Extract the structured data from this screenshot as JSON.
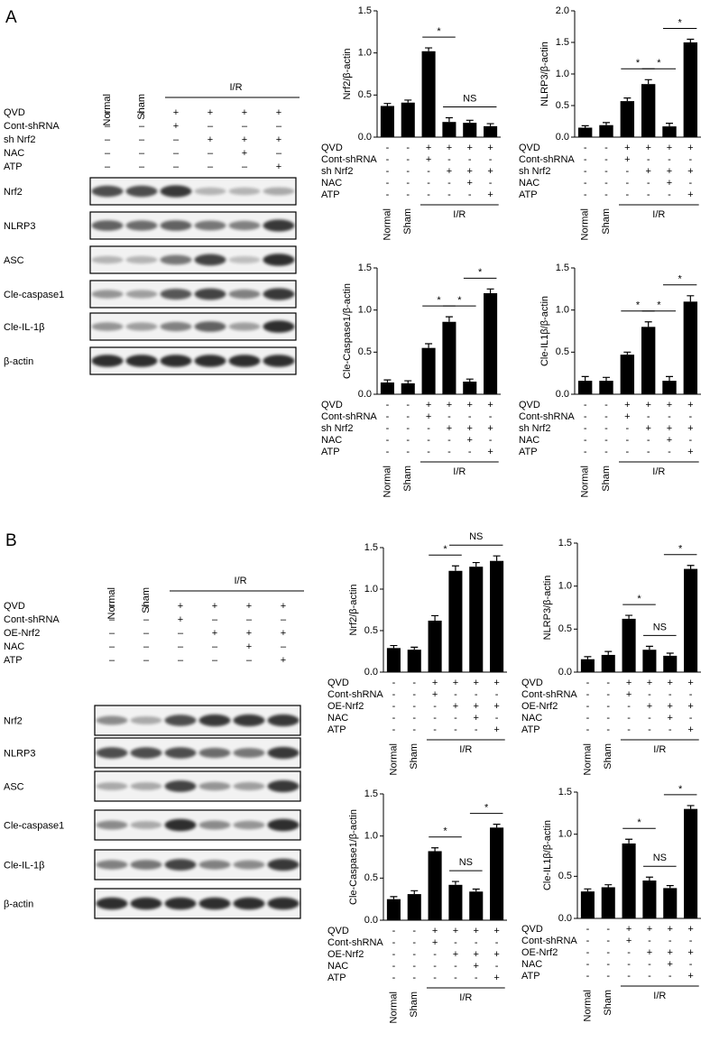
{
  "panels": [
    {
      "label": "A",
      "blot": {
        "lanes": [
          "Normal",
          "Sham"
        ],
        "group": "I/R",
        "conditions": [
          {
            "name": "QVD",
            "marks": [
              "–",
              "–",
              "+",
              "+",
              "+",
              "+"
            ]
          },
          {
            "name": "Cont-shRNA",
            "marks": [
              "–",
              "–",
              "+",
              "–",
              "–",
              "–"
            ]
          },
          {
            "name": "sh Nrf2",
            "marks": [
              "–",
              "–",
              "–",
              "+",
              "+",
              "+"
            ]
          },
          {
            "name": "NAC",
            "marks": [
              "–",
              "–",
              "–",
              "–",
              "+",
              "–"
            ]
          },
          {
            "name": "ATP",
            "marks": [
              "–",
              "–",
              "–",
              "–",
              "–",
              "+"
            ]
          }
        ],
        "rows": [
          "Nrf2",
          "NLRP3",
          "ASC",
          "Cle-caspase1",
          "Cle-IL-1β",
          "β-actin"
        ]
      }
    },
    {
      "label": "B",
      "blot": {
        "lanes": [
          "Normal",
          "Sham"
        ],
        "group": "I/R",
        "conditions": [
          {
            "name": "QVD",
            "marks": [
              "–",
              "–",
              "+",
              "+",
              "+",
              "+"
            ]
          },
          {
            "name": "Cont-shRNA",
            "marks": [
              "–",
              "–",
              "+",
              "–",
              "–",
              "–"
            ]
          },
          {
            "name": "OE-Nrf2",
            "marks": [
              "–",
              "–",
              "–",
              "+",
              "+",
              "+"
            ]
          },
          {
            "name": "NAC",
            "marks": [
              "–",
              "–",
              "–",
              "–",
              "+",
              "–"
            ]
          },
          {
            "name": "ATP",
            "marks": [
              "–",
              "–",
              "–",
              "–",
              "–",
              "+"
            ]
          }
        ],
        "rows": [
          "Nrf2",
          "NLRP3",
          "ASC",
          "Cle-caspase1",
          "Cle-IL-1β",
          "β-actin"
        ]
      }
    }
  ],
  "chart_data": [
    {
      "type": "bar",
      "ylabel": "Nrf2/β-actin",
      "categories": [
        "Normal",
        "Sham",
        null,
        null,
        null,
        null
      ],
      "values": [
        0.37,
        0.41,
        1.02,
        0.18,
        0.17,
        0.13
      ],
      "errors": [
        0.03,
        0.03,
        0.04,
        0.05,
        0.03,
        0.03
      ],
      "color": "#000000",
      "ylim": [
        0,
        1.5
      ],
      "yticks": [
        {
          "value": 0,
          "label": "0.0"
        },
        0.5,
        {
          "value": 1,
          "label": "1.0"
        },
        1.5
      ],
      "annotations": [
        {
          "text": "*",
          "from": 2,
          "to": 3
        },
        {
          "text": "NS",
          "from": 3,
          "to": 5
        }
      ],
      "conditions": {
        "group": "I/R",
        "rows": [
          {
            "name": "QVD",
            "marks": [
              "-",
              "-",
              "+",
              "+",
              "+",
              "+"
            ]
          },
          {
            "name": "Cont-shRNA",
            "marks": [
              "-",
              "-",
              "+",
              "-",
              "-",
              "-"
            ]
          },
          {
            "name": "sh Nrf2",
            "marks": [
              "-",
              "-",
              "-",
              "+",
              "+",
              "+"
            ]
          },
          {
            "name": "NAC",
            "marks": [
              "-",
              "-",
              "-",
              "-",
              "+",
              "-"
            ]
          },
          {
            "name": "ATP",
            "marks": [
              "-",
              "-",
              "-",
              "-",
              "-",
              "+"
            ]
          }
        ]
      }
    },
    {
      "type": "bar",
      "ylabel": "NLRP3/β-actin",
      "categories": [
        "Normal",
        "Sham",
        null,
        null,
        null,
        null
      ],
      "values": [
        0.15,
        0.19,
        0.57,
        0.84,
        0.17,
        1.5
      ],
      "errors": [
        0.03,
        0.04,
        0.05,
        0.07,
        0.05,
        0.05
      ],
      "color": "#000000",
      "ylim": [
        0,
        2
      ],
      "yticks": [
        {
          "value": 0,
          "label": "0.0"
        },
        0.5,
        {
          "value": 1,
          "label": "1.0"
        },
        1.5,
        {
          "value": 2,
          "label": "2.0"
        }
      ],
      "annotations": [
        {
          "text": "*",
          "from": 2,
          "to": 3
        },
        {
          "text": "*",
          "from": 3,
          "to": 4
        },
        {
          "text": "*",
          "from": 4,
          "to": 5
        }
      ],
      "conditions": {
        "group": "I/R",
        "rows": [
          {
            "name": "QVD",
            "marks": [
              "-",
              "-",
              "+",
              "+",
              "+",
              "+"
            ]
          },
          {
            "name": "Cont-shRNA",
            "marks": [
              "-",
              "-",
              "+",
              "-",
              "-",
              "-"
            ]
          },
          {
            "name": "sh Nrf2",
            "marks": [
              "-",
              "-",
              "-",
              "+",
              "+",
              "+"
            ]
          },
          {
            "name": "NAC",
            "marks": [
              "-",
              "-",
              "-",
              "-",
              "+",
              "-"
            ]
          },
          {
            "name": "ATP",
            "marks": [
              "-",
              "-",
              "-",
              "-",
              "-",
              "+"
            ]
          }
        ]
      }
    },
    {
      "type": "bar",
      "ylabel": "Cle-Caspase1/β-actin",
      "categories": [
        "Normal",
        "Sham",
        null,
        null,
        null,
        null
      ],
      "values": [
        0.14,
        0.13,
        0.55,
        0.86,
        0.15,
        1.2
      ],
      "errors": [
        0.03,
        0.03,
        0.05,
        0.06,
        0.03,
        0.05
      ],
      "color": "#000000",
      "ylim": [
        0,
        1.5
      ],
      "yticks": [
        {
          "value": 0,
          "label": "0.0"
        },
        0.5,
        {
          "value": 1,
          "label": "1.0"
        },
        1.5
      ],
      "annotations": [
        {
          "text": "*",
          "from": 2,
          "to": 3
        },
        {
          "text": "*",
          "from": 3,
          "to": 4
        },
        {
          "text": "*",
          "from": 4,
          "to": 5
        }
      ],
      "conditions": {
        "group": "I/R",
        "rows": [
          {
            "name": "QVD",
            "marks": [
              "-",
              "-",
              "+",
              "+",
              "+",
              "+"
            ]
          },
          {
            "name": "Cont-shRNA",
            "marks": [
              "-",
              "-",
              "+",
              "-",
              "-",
              "-"
            ]
          },
          {
            "name": "sh Nrf2",
            "marks": [
              "-",
              "-",
              "-",
              "+",
              "+",
              "+"
            ]
          },
          {
            "name": "NAC",
            "marks": [
              "-",
              "-",
              "-",
              "-",
              "+",
              "-"
            ]
          },
          {
            "name": "ATP",
            "marks": [
              "-",
              "-",
              "-",
              "-",
              "-",
              "+"
            ]
          }
        ]
      }
    },
    {
      "type": "bar",
      "ylabel": "Cle-IL1β/β-actin",
      "categories": [
        "Normal",
        "Sham",
        null,
        null,
        null,
        null
      ],
      "values": [
        0.16,
        0.16,
        0.47,
        0.8,
        0.16,
        1.1
      ],
      "errors": [
        0.05,
        0.04,
        0.03,
        0.06,
        0.05,
        0.07
      ],
      "color": "#000000",
      "ylim": [
        0,
        1.5
      ],
      "yticks": [
        {
          "value": 0,
          "label": "0.0"
        },
        0.5,
        {
          "value": 1,
          "label": "1.0"
        },
        1.5
      ],
      "annotations": [
        {
          "text": "*",
          "from": 2,
          "to": 3
        },
        {
          "text": "*",
          "from": 3,
          "to": 4
        },
        {
          "text": "*",
          "from": 4,
          "to": 5
        }
      ],
      "conditions": {
        "group": "I/R",
        "rows": [
          {
            "name": "QVD",
            "marks": [
              "-",
              "-",
              "+",
              "+",
              "+",
              "+"
            ]
          },
          {
            "name": "Cont-shRNA",
            "marks": [
              "-",
              "-",
              "+",
              "-",
              "-",
              "-"
            ]
          },
          {
            "name": "sh Nrf2",
            "marks": [
              "-",
              "-",
              "-",
              "+",
              "+",
              "+"
            ]
          },
          {
            "name": "NAC",
            "marks": [
              "-",
              "-",
              "-",
              "-",
              "+",
              "-"
            ]
          },
          {
            "name": "ATP",
            "marks": [
              "-",
              "-",
              "-",
              "-",
              "-",
              "+"
            ]
          }
        ]
      }
    },
    {
      "type": "bar",
      "ylabel": "Nrf2/β-actin",
      "categories": [
        "Normal",
        "Sham",
        null,
        null,
        null,
        null
      ],
      "values": [
        0.29,
        0.27,
        0.62,
        1.22,
        1.27,
        1.34
      ],
      "errors": [
        0.03,
        0.03,
        0.06,
        0.06,
        0.05,
        0.06
      ],
      "color": "#000000",
      "ylim": [
        0,
        1.5
      ],
      "yticks": [
        {
          "value": 0,
          "label": "0.0"
        },
        0.5,
        {
          "value": 1,
          "label": "1.0"
        },
        1.5
      ],
      "annotations": [
        {
          "text": "*",
          "from": 2,
          "to": 3
        },
        {
          "text": "NS",
          "from": 3,
          "to": 5
        }
      ],
      "conditions": {
        "group": "I/R",
        "rows": [
          {
            "name": "QVD",
            "marks": [
              "-",
              "-",
              "+",
              "+",
              "+",
              "+"
            ]
          },
          {
            "name": "Cont-shRNA",
            "marks": [
              "-",
              "-",
              "+",
              "-",
              "-",
              "-"
            ]
          },
          {
            "name": "OE-Nrf2",
            "marks": [
              "-",
              "-",
              "-",
              "+",
              "+",
              "+"
            ]
          },
          {
            "name": "NAC",
            "marks": [
              "-",
              "-",
              "-",
              "-",
              "+",
              "-"
            ]
          },
          {
            "name": "ATP",
            "marks": [
              "-",
              "-",
              "-",
              "-",
              "-",
              "+"
            ]
          }
        ]
      }
    },
    {
      "type": "bar",
      "ylabel": "NLRP3/β-actin",
      "categories": [
        "Normal",
        "Sham",
        null,
        null,
        null,
        null
      ],
      "values": [
        0.15,
        0.2,
        0.62,
        0.26,
        0.19,
        1.2
      ],
      "errors": [
        0.03,
        0.04,
        0.04,
        0.04,
        0.03,
        0.04
      ],
      "color": "#000000",
      "ylim": [
        0,
        1.5
      ],
      "yticks": [
        {
          "value": 0,
          "label": "0.0"
        },
        0.5,
        {
          "value": 1,
          "label": "1.0"
        },
        1.5
      ],
      "annotations": [
        {
          "text": "*",
          "from": 2,
          "to": 3
        },
        {
          "text": "NS",
          "from": 3,
          "to": 4
        },
        {
          "text": "*",
          "from": 4,
          "to": 5
        }
      ],
      "conditions": {
        "group": "I/R",
        "rows": [
          {
            "name": "QVD",
            "marks": [
              "-",
              "-",
              "+",
              "+",
              "+",
              "+"
            ]
          },
          {
            "name": "Cont-shRNA",
            "marks": [
              "-",
              "-",
              "+",
              "-",
              "-",
              "-"
            ]
          },
          {
            "name": "OE-Nrf2",
            "marks": [
              "-",
              "-",
              "-",
              "+",
              "+",
              "+"
            ]
          },
          {
            "name": "NAC",
            "marks": [
              "-",
              "-",
              "-",
              "-",
              "+",
              "-"
            ]
          },
          {
            "name": "ATP",
            "marks": [
              "-",
              "-",
              "-",
              "-",
              "-",
              "+"
            ]
          }
        ]
      }
    },
    {
      "type": "bar",
      "ylabel": "Cle-Caspase1/β-actin",
      "categories": [
        "Normal",
        "Sham",
        null,
        null,
        null,
        null
      ],
      "values": [
        0.25,
        0.31,
        0.82,
        0.42,
        0.34,
        1.1
      ],
      "errors": [
        0.03,
        0.04,
        0.04,
        0.04,
        0.03,
        0.04
      ],
      "color": "#000000",
      "ylim": [
        0,
        1.5
      ],
      "yticks": [
        {
          "value": 0,
          "label": "0.0"
        },
        0.5,
        {
          "value": 1,
          "label": "1.0"
        },
        1.5
      ],
      "annotations": [
        {
          "text": "*",
          "from": 2,
          "to": 3
        },
        {
          "text": "NS",
          "from": 3,
          "to": 4
        },
        {
          "text": "*",
          "from": 4,
          "to": 5
        }
      ],
      "conditions": {
        "group": "I/R",
        "rows": [
          {
            "name": "QVD",
            "marks": [
              "-",
              "-",
              "+",
              "+",
              "+",
              "+"
            ]
          },
          {
            "name": "Cont-shRNA",
            "marks": [
              "-",
              "-",
              "+",
              "-",
              "-",
              "-"
            ]
          },
          {
            "name": "OE-Nrf2",
            "marks": [
              "-",
              "-",
              "-",
              "+",
              "+",
              "+"
            ]
          },
          {
            "name": "NAC",
            "marks": [
              "-",
              "-",
              "-",
              "-",
              "+",
              "-"
            ]
          },
          {
            "name": "ATP",
            "marks": [
              "-",
              "-",
              "-",
              "-",
              "-",
              "+"
            ]
          }
        ]
      }
    },
    {
      "type": "bar",
      "ylabel": "Cle-IL1β/β-actin",
      "categories": [
        "Normal",
        "Sham",
        null,
        null,
        null,
        null
      ],
      "values": [
        0.32,
        0.37,
        0.89,
        0.45,
        0.36,
        1.3
      ],
      "errors": [
        0.03,
        0.03,
        0.05,
        0.04,
        0.03,
        0.04
      ],
      "color": "#000000",
      "ylim": [
        0,
        1.5
      ],
      "yticks": [
        {
          "value": 0,
          "label": "0.0"
        },
        0.5,
        {
          "value": 1,
          "label": "1.0"
        },
        1.5
      ],
      "annotations": [
        {
          "text": "*",
          "from": 2,
          "to": 3
        },
        {
          "text": "NS",
          "from": 3,
          "to": 4
        },
        {
          "text": "*",
          "from": 4,
          "to": 5
        }
      ],
      "conditions": {
        "group": "I/R",
        "rows": [
          {
            "name": "QVD",
            "marks": [
              "-",
              "-",
              "+",
              "+",
              "+",
              "+"
            ]
          },
          {
            "name": "Cont-shRNA",
            "marks": [
              "-",
              "-",
              "+",
              "-",
              "-",
              "-"
            ]
          },
          {
            "name": "OE-Nrf2",
            "marks": [
              "-",
              "-",
              "-",
              "+",
              "+",
              "+"
            ]
          },
          {
            "name": "NAC",
            "marks": [
              "-",
              "-",
              "-",
              "-",
              "+",
              "-"
            ]
          },
          {
            "name": "ATP",
            "marks": [
              "-",
              "-",
              "-",
              "-",
              "-",
              "+"
            ]
          }
        ]
      }
    }
  ]
}
